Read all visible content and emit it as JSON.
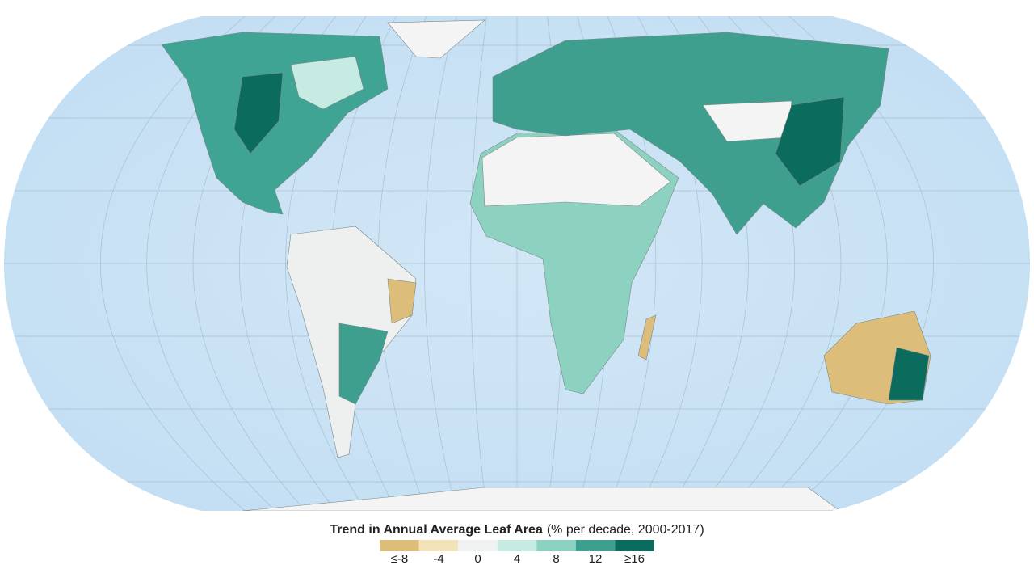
{
  "legend": {
    "title": "Trend in Annual Average Leaf Area",
    "subtitle": "(% per decade, 2000-2017)",
    "colors": [
      "#dcbd7a",
      "#f3e3b9",
      "#f1f3f3",
      "#c6ebe2",
      "#8dd2c0",
      "#3e9f8f",
      "#0b6b5c"
    ],
    "labels": [
      "≤-8",
      "-4",
      "0",
      "4",
      "8",
      "12",
      "≥16"
    ]
  }
}
